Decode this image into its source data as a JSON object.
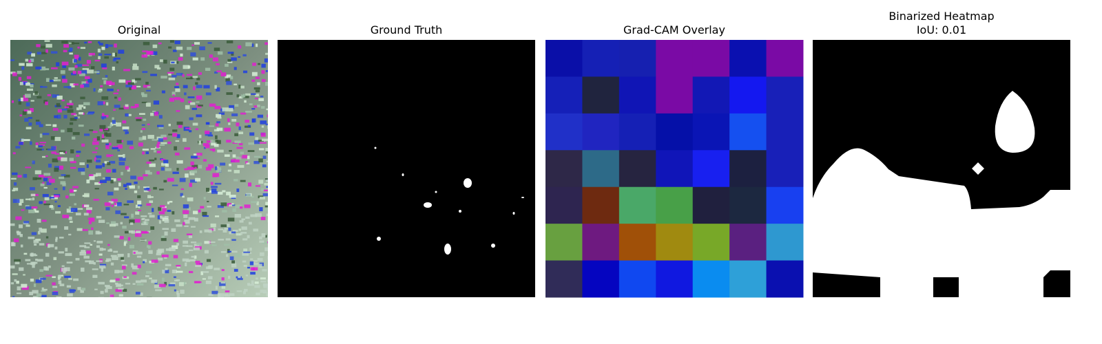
{
  "panels": [
    {
      "title": [
        "Original"
      ]
    },
    {
      "title": [
        "Ground Truth"
      ]
    },
    {
      "title": [
        "Grad-CAM Overlay"
      ]
    },
    {
      "title": [
        "Binarized Heatmap",
        "IoU: 0.01"
      ]
    }
  ]
}
